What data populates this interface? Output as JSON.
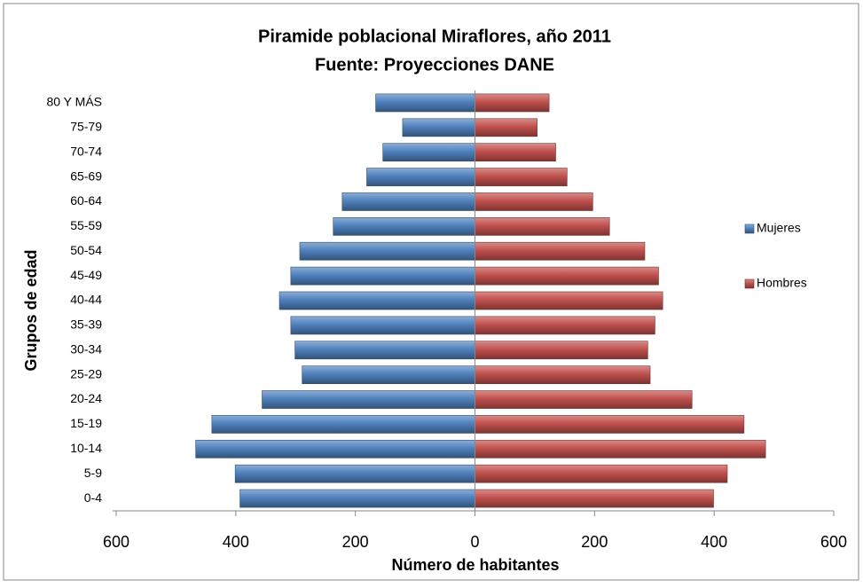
{
  "chart_data": {
    "type": "bar",
    "orientation": "horizontal",
    "stacked": true,
    "title": "Piramide poblacional  Miraflores, año 2011",
    "subtitle": "Fuente:  Proyecciones DANE",
    "xlabel": "Número de habitantes",
    "ylabel": "Grupos de edad",
    "categories": [
      "0-4",
      "5-9",
      "10-14",
      "15-19",
      "20-24",
      "25-29",
      "30-34",
      "35-39",
      "40-44",
      "45-49",
      "50-54",
      "55-59",
      "60-64",
      "65-69",
      "70-74",
      "75-79",
      "80 Y MÁS"
    ],
    "series": [
      {
        "name": "Mujeres",
        "color": "#4f81bd",
        "values": [
          -393,
          -401,
          -467,
          -440,
          -356,
          -289,
          -301,
          -308,
          -327,
          -308,
          -293,
          -237,
          -222,
          -181,
          -154,
          -121,
          -166
        ]
      },
      {
        "name": "Hombres",
        "color": "#c0504d",
        "values": [
          399,
          422,
          486,
          450,
          363,
          293,
          289,
          301,
          314,
          307,
          284,
          225,
          197,
          154,
          135,
          104,
          124
        ]
      }
    ],
    "xlim": [
      -600,
      600
    ],
    "xticks": [
      {
        "value": -600,
        "label": "600"
      },
      {
        "value": -400,
        "label": "400"
      },
      {
        "value": -200,
        "label": "200"
      },
      0,
      200,
      400,
      600
    ],
    "legend": "right"
  }
}
